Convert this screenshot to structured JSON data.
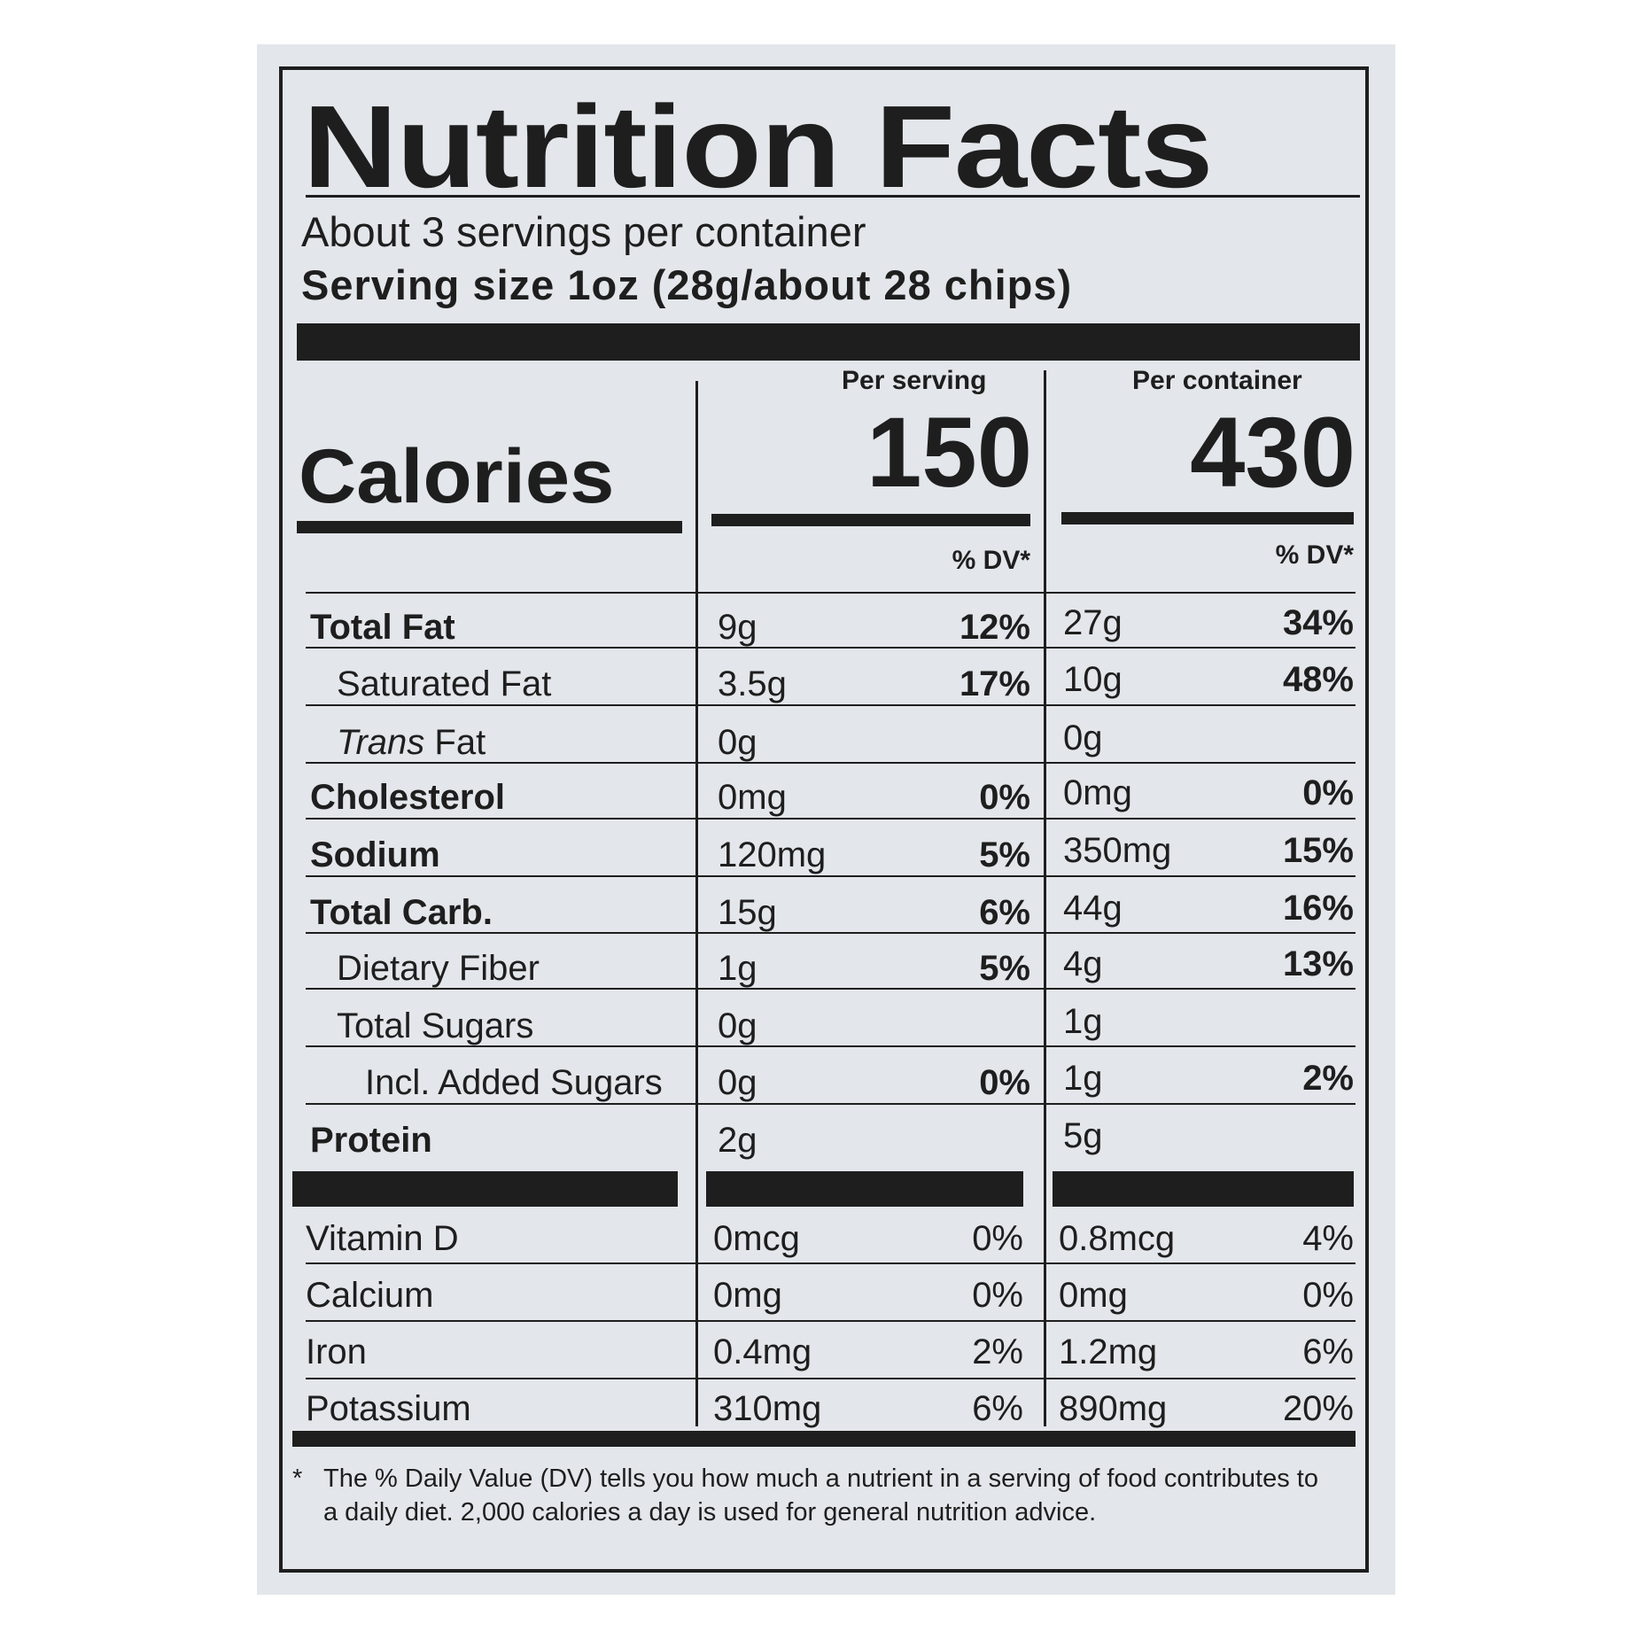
{
  "label": {
    "title": "Nutrition Facts",
    "servings_per_container": "About 3 servings per container",
    "serving_size": "Serving size 1oz (28g/about 28 chips)",
    "calories_label": "Calories",
    "per_serving_header": "Per serving",
    "per_container_header": "Per container",
    "calories_per_serving": "150",
    "calories_per_container": "430",
    "dv_header": "% DV*",
    "nutrients": [
      {
        "name": "Total Fat",
        "serving_amount": "9g",
        "serving_dv": "12%",
        "container_amount": "27g",
        "container_dv": "34%"
      },
      {
        "name": "Saturated Fat",
        "serving_amount": "3.5g",
        "serving_dv": "17%",
        "container_amount": "10g",
        "container_dv": "48%"
      },
      {
        "name_italic": "Trans",
        "name_rest": " Fat",
        "serving_amount": "0g",
        "serving_dv": "",
        "container_amount": "0g",
        "container_dv": ""
      },
      {
        "name": "Cholesterol",
        "serving_amount": "0mg",
        "serving_dv": "0%",
        "container_amount": "0mg",
        "container_dv": "0%"
      },
      {
        "name": "Sodium",
        "serving_amount": "120mg",
        "serving_dv": "5%",
        "container_amount": "350mg",
        "container_dv": "15%"
      },
      {
        "name": "Total Carb.",
        "serving_amount": "15g",
        "serving_dv": "6%",
        "container_amount": "44g",
        "container_dv": "16%"
      },
      {
        "name": "Dietary Fiber",
        "serving_amount": "1g",
        "serving_dv": "5%",
        "container_amount": "4g",
        "container_dv": "13%"
      },
      {
        "name": "Total Sugars",
        "serving_amount": "0g",
        "serving_dv": "",
        "container_amount": "1g",
        "container_dv": ""
      },
      {
        "name": "Incl. Added Sugars",
        "serving_amount": "0g",
        "serving_dv": "0%",
        "container_amount": "1g",
        "container_dv": "2%"
      },
      {
        "name": "Protein",
        "serving_amount": "2g",
        "serving_dv": "",
        "container_amount": "5g",
        "container_dv": ""
      }
    ],
    "vitamins": [
      {
        "name": "Vitamin D",
        "serving_amount": "0mcg",
        "serving_dv": "0%",
        "container_amount": "0.8mcg",
        "container_dv": "4%"
      },
      {
        "name": "Calcium",
        "serving_amount": "0mg",
        "serving_dv": "0%",
        "container_amount": "0mg",
        "container_dv": "0%"
      },
      {
        "name": "Iron",
        "serving_amount": "0.4mg",
        "serving_dv": "2%",
        "container_amount": "1.2mg",
        "container_dv": "6%"
      },
      {
        "name": "Potassium",
        "serving_amount": "310mg",
        "serving_dv": "6%",
        "container_amount": "890mg",
        "container_dv": "20%"
      }
    ],
    "footnote_star": "*",
    "footnote": "The % Daily Value (DV) tells you how much a nutrient in a serving of food contributes to a daily diet. 2,000 calories a day is used for general nutrition advice."
  }
}
